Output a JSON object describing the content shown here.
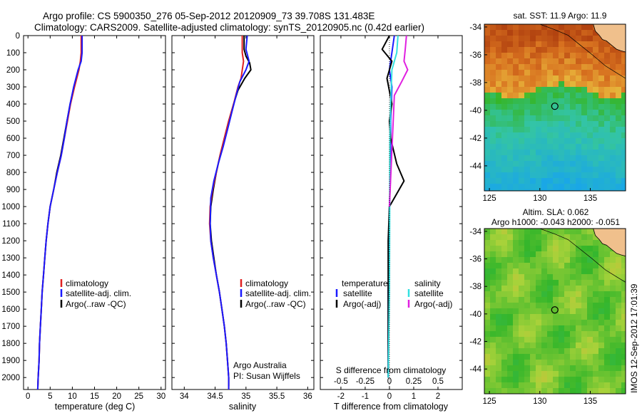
{
  "header": {
    "line1": "Argo profile: CS 5900350_276 05-Sep-2012 20120909_73 39.708S 131.483E",
    "line2": "Climatology: CARS2009. Satellite-adjusted climatology: synTS_20120905.nc (0.42d earlier)"
  },
  "depth_ticks": [
    "0",
    "100",
    "200",
    "300",
    "400",
    "500",
    "600",
    "700",
    "800",
    "900",
    "1000",
    "1100",
    "1200",
    "1300",
    "1400",
    "1500",
    "1600",
    "1700",
    "1800",
    "1900",
    "2000"
  ],
  "colors": {
    "climatology": "#e02020",
    "satellite": "#1a1aff",
    "argo": "#000000",
    "satellite_s": "#33e0e0",
    "argo_s": "#e020e0"
  },
  "legend_profile": {
    "climatology": "climatology",
    "satellite": "satellite-adj. clim.",
    "argo": "Argo(..raw -QC)"
  },
  "legend_diff": {
    "temperature": "temperature",
    "salinity": "salinity",
    "satellite": "satellite",
    "argo": "Argo(-adj)"
  },
  "annotation": {
    "line1": "Argo Australia",
    "line2": "PI: Susan Wijffels"
  },
  "sst_title": "sat. SST: 11.9  Argo: 11.9",
  "sla_title1": "Altim. SLA: 0.062",
  "sla_title2": "Argo h1000: -0.043  h2000: -0.051",
  "side_label": "IMOS 12-Sep-2012 17:01:39",
  "chart_data": [
    {
      "type": "line",
      "xlabel": "temperature (deg C)",
      "xlim": [
        -1,
        31
      ],
      "ylim": [
        0,
        2070
      ],
      "xticks": [
        "0",
        "5",
        "10",
        "15",
        "20",
        "25",
        "30"
      ],
      "series": [
        {
          "name": "climatology",
          "points": [
            [
              12,
              0
            ],
            [
              12,
              100
            ],
            [
              11.8,
              150
            ],
            [
              11.5,
              200
            ],
            [
              10.5,
              300
            ],
            [
              9.6,
              400
            ],
            [
              8.9,
              500
            ],
            [
              8.2,
              600
            ],
            [
              7.5,
              700
            ],
            [
              6.6,
              800
            ],
            [
              5.8,
              900
            ],
            [
              5.0,
              1000
            ],
            [
              4.5,
              1100
            ],
            [
              4.1,
              1200
            ],
            [
              3.8,
              1300
            ],
            [
              3.5,
              1400
            ],
            [
              3.2,
              1500
            ],
            [
              3.0,
              1600
            ],
            [
              2.8,
              1700
            ],
            [
              2.6,
              1800
            ],
            [
              2.5,
              1900
            ],
            [
              2.3,
              2000
            ],
            [
              2.2,
              2070
            ]
          ]
        },
        {
          "name": "satellite-adj. clim.",
          "points": [
            [
              12.2,
              0
            ],
            [
              12.2,
              100
            ],
            [
              12,
              150
            ],
            [
              11.3,
              200
            ],
            [
              10.3,
              300
            ],
            [
              9.5,
              400
            ],
            [
              8.8,
              500
            ],
            [
              8.2,
              600
            ],
            [
              7.5,
              700
            ],
            [
              6.6,
              800
            ],
            [
              5.8,
              900
            ],
            [
              5.0,
              1000
            ],
            [
              4.5,
              1100
            ],
            [
              4.1,
              1200
            ],
            [
              3.8,
              1300
            ],
            [
              3.5,
              1400
            ],
            [
              3.2,
              1500
            ],
            [
              3.0,
              1600
            ],
            [
              2.8,
              1700
            ],
            [
              2.6,
              1800
            ],
            [
              2.5,
              1900
            ],
            [
              2.3,
              2000
            ],
            [
              2.2,
              2070
            ]
          ]
        },
        {
          "name": "Argo(..raw -QC)",
          "points": [
            [
              12.1,
              0
            ],
            [
              12.1,
              100
            ],
            [
              11.9,
              150
            ],
            [
              11.4,
              200
            ],
            [
              10.4,
              300
            ],
            [
              9.5,
              400
            ],
            [
              8.8,
              500
            ],
            [
              8.1,
              600
            ],
            [
              7.4,
              700
            ],
            [
              6.5,
              800
            ],
            [
              5.8,
              900
            ],
            [
              5.0,
              1000
            ],
            [
              4.5,
              1100
            ],
            [
              4.1,
              1200
            ],
            [
              3.8,
              1300
            ],
            [
              3.5,
              1400
            ],
            [
              3.2,
              1500
            ],
            [
              3.0,
              1600
            ],
            [
              2.8,
              1700
            ],
            [
              2.6,
              1800
            ],
            [
              2.5,
              1900
            ],
            [
              2.3,
              2000
            ],
            [
              2.2,
              2070
            ]
          ]
        }
      ]
    },
    {
      "type": "line",
      "xlabel": "salinity",
      "xlim": [
        33.8,
        36.1
      ],
      "ylim": [
        0,
        2070
      ],
      "xticks": [
        "34",
        "34.5",
        "35",
        "35.5",
        "36"
      ],
      "series": [
        {
          "name": "climatology",
          "points": [
            [
              34.94,
              0
            ],
            [
              34.94,
              100
            ],
            [
              34.96,
              150
            ],
            [
              34.92,
              250
            ],
            [
              34.87,
              300
            ],
            [
              34.8,
              400
            ],
            [
              34.72,
              500
            ],
            [
              34.65,
              600
            ],
            [
              34.58,
              700
            ],
            [
              34.52,
              800
            ],
            [
              34.46,
              900
            ],
            [
              34.42,
              1000
            ],
            [
              34.41,
              1100
            ],
            [
              34.43,
              1200
            ],
            [
              34.47,
              1300
            ],
            [
              34.52,
              1400
            ],
            [
              34.57,
              1500
            ],
            [
              34.61,
              1600
            ],
            [
              34.65,
              1700
            ],
            [
              34.68,
              1800
            ],
            [
              34.7,
              1900
            ],
            [
              34.72,
              2000
            ],
            [
              34.72,
              2070
            ]
          ]
        },
        {
          "name": "satellite-adj. clim.",
          "points": [
            [
              35.02,
              0
            ],
            [
              35.0,
              80
            ],
            [
              35.05,
              150
            ],
            [
              35.0,
              200
            ],
            [
              34.9,
              270
            ],
            [
              34.84,
              350
            ],
            [
              34.77,
              450
            ],
            [
              34.7,
              550
            ],
            [
              34.63,
              650
            ],
            [
              34.55,
              750
            ],
            [
              34.48,
              850
            ],
            [
              34.43,
              950
            ],
            [
              34.42,
              1100
            ],
            [
              34.43,
              1200
            ],
            [
              34.47,
              1300
            ],
            [
              34.52,
              1400
            ],
            [
              34.57,
              1500
            ],
            [
              34.61,
              1600
            ],
            [
              34.65,
              1700
            ],
            [
              34.68,
              1800
            ],
            [
              34.7,
              1900
            ],
            [
              34.72,
              2000
            ],
            [
              34.72,
              2070
            ]
          ]
        },
        {
          "name": "Argo(..raw -QC)",
          "points": [
            [
              34.97,
              0
            ],
            [
              34.97,
              80
            ],
            [
              35.0,
              120
            ],
            [
              35.06,
              160
            ],
            [
              35.08,
              200
            ],
            [
              34.98,
              250
            ],
            [
              34.87,
              320
            ],
            [
              34.8,
              400
            ],
            [
              34.72,
              500
            ],
            [
              34.65,
              600
            ],
            [
              34.58,
              700
            ],
            [
              34.52,
              800
            ],
            [
              34.47,
              900
            ],
            [
              34.43,
              1000
            ],
            [
              34.42,
              1100
            ],
            [
              34.44,
              1200
            ],
            [
              34.48,
              1300
            ],
            [
              34.52,
              1400
            ],
            [
              34.57,
              1500
            ],
            [
              34.61,
              1600
            ],
            [
              34.65,
              1700
            ],
            [
              34.68,
              1800
            ],
            [
              34.7,
              1900
            ],
            [
              34.72,
              2000
            ],
            [
              34.72,
              2050
            ]
          ]
        }
      ]
    },
    {
      "type": "line",
      "xlabel": "T difference from climatology",
      "top_axis_label": "S difference from climatology",
      "xlim": [
        -2.85,
        3.0
      ],
      "ylim": [
        0,
        2070
      ],
      "xticks": [
        "-2",
        "-1",
        "0",
        "1",
        "2"
      ],
      "top_ticks": [
        "-0.5",
        "-0.25",
        "0",
        "0.25",
        "0.5"
      ],
      "series": [
        {
          "name": "temperature satellite",
          "points": [
            [
              0.2,
              0
            ],
            [
              0.1,
              100
            ],
            [
              0,
              200
            ],
            [
              0.1,
              300
            ],
            [
              0.05,
              500
            ],
            [
              0.05,
              800
            ],
            [
              0,
              1000
            ],
            [
              -0.05,
              1500
            ],
            [
              -0.05,
              2000
            ]
          ]
        },
        {
          "name": "temperature Argo(-adj)",
          "points": [
            [
              0,
              0
            ],
            [
              -0.3,
              80
            ],
            [
              0.1,
              150
            ],
            [
              -0.1,
              250
            ],
            [
              0.1,
              400
            ],
            [
              0,
              500
            ],
            [
              0.05,
              600
            ],
            [
              0.3,
              750
            ],
            [
              0.6,
              850
            ],
            [
              0.4,
              900
            ],
            [
              0,
              1000
            ],
            [
              -0.05,
              1200
            ],
            [
              -0.05,
              1500
            ],
            [
              -0.05,
              2000
            ]
          ]
        },
        {
          "name": "salinity satellite",
          "points": [
            [
              0.35,
              0
            ],
            [
              0.3,
              100
            ],
            [
              0.1,
              200
            ],
            [
              0.05,
              400
            ],
            [
              0.02,
              600
            ],
            [
              0.01,
              1000
            ],
            [
              0,
              1500
            ],
            [
              -0.05,
              2000
            ]
          ]
        },
        {
          "name": "salinity Argo(-adj)",
          "points": [
            [
              0.7,
              0
            ],
            [
              0.65,
              80
            ],
            [
              0.6,
              150
            ],
            [
              0.75,
              200
            ],
            [
              0.5,
              270
            ],
            [
              0.2,
              350
            ],
            [
              0,
              1000
            ]
          ]
        }
      ]
    }
  ],
  "sst_map": {
    "xticks": [
      "125",
      "130",
      "135"
    ],
    "yticks": [
      "-34",
      "-36",
      "-38",
      "-40",
      "-42",
      "-44"
    ],
    "lon": [
      124.5,
      138.5
    ],
    "lat": [
      -45.8,
      -33.8
    ],
    "argo_lon": 131.483,
    "argo_lat": -39.708
  },
  "sla_map": {
    "xticks": [
      "125",
      "130",
      "135"
    ],
    "yticks": [
      "-34",
      "-36",
      "-38",
      "-40",
      "-42",
      "-44"
    ],
    "lon": [
      124.5,
      138.5
    ],
    "lat": [
      -45.8,
      -33.8
    ],
    "argo_lon": 131.483,
    "argo_lat": -39.708
  }
}
